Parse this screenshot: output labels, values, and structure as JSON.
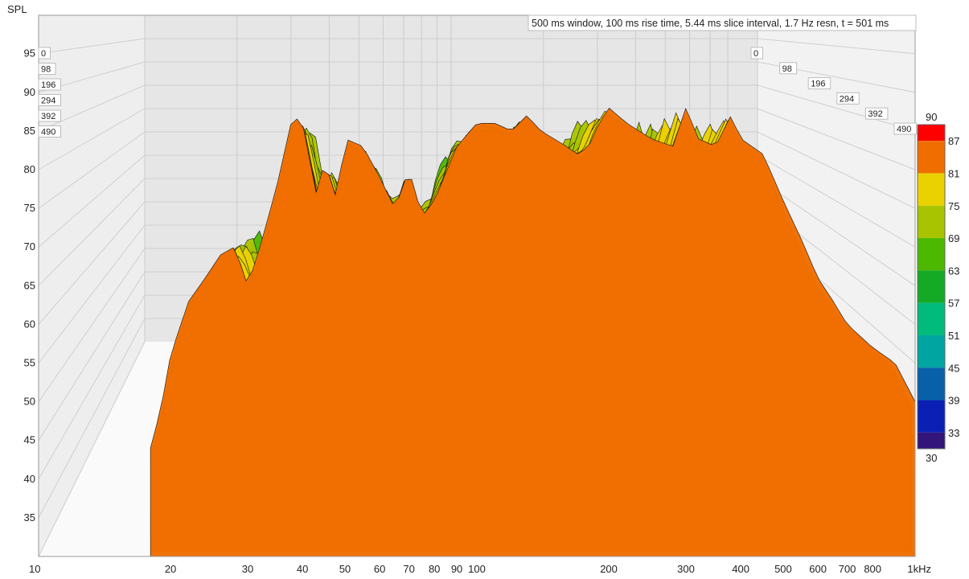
{
  "chart_data": {
    "type": "waterfall",
    "title": "500 ms window, 100 ms rise time, 5.44 ms slice interval, 1.7 Hz resn, t = 501 ms",
    "ylabel": "SPL",
    "xunit": "Hz",
    "ylim": [
      30,
      100
    ],
    "xlim": [
      10,
      1000
    ],
    "x_scale": "log",
    "y_ticks": [
      35,
      40,
      45,
      50,
      55,
      60,
      65,
      70,
      75,
      80,
      85,
      90,
      95
    ],
    "x_ticks": [
      {
        "value": 10,
        "label": "10"
      },
      {
        "value": 20,
        "label": "20"
      },
      {
        "value": 30,
        "label": "30"
      },
      {
        "value": 40,
        "label": "40"
      },
      {
        "value": 50,
        "label": "50"
      },
      {
        "value": 60,
        "label": "60"
      },
      {
        "value": 70,
        "label": "70"
      },
      {
        "value": 80,
        "label": "80"
      },
      {
        "value": 90,
        "label": "90"
      },
      {
        "value": 100,
        "label": "100"
      },
      {
        "value": 200,
        "label": "200"
      },
      {
        "value": 300,
        "label": "300"
      },
      {
        "value": 400,
        "label": "400"
      },
      {
        "value": 500,
        "label": "500"
      },
      {
        "value": 600,
        "label": "600"
      },
      {
        "value": 700,
        "label": "700"
      },
      {
        "value": 800,
        "label": "800"
      },
      {
        "value": 1000,
        "label": "1kHz"
      }
    ],
    "time_slices_ms": [
      "0",
      "98",
      "196",
      "294",
      "392",
      "490"
    ],
    "colorbar": {
      "min": 30,
      "max": 90,
      "labels": [
        {
          "value": 90,
          "label": "90"
        },
        {
          "value": 87,
          "label": "87"
        },
        {
          "value": 81,
          "label": "81"
        },
        {
          "value": 75,
          "label": "75"
        },
        {
          "value": 69,
          "label": "69"
        },
        {
          "value": 63,
          "label": "63"
        },
        {
          "value": 57,
          "label": "57"
        },
        {
          "value": 51,
          "label": "51"
        },
        {
          "value": 45,
          "label": "45"
        },
        {
          "value": 39,
          "label": "39"
        },
        {
          "value": 33,
          "label": "33"
        },
        {
          "value": 30,
          "label": "30"
        }
      ],
      "bands": [
        {
          "from": 87,
          "to": 90,
          "color": "#ff0000"
        },
        {
          "from": 81,
          "to": 87,
          "color": "#f06e00"
        },
        {
          "from": 75,
          "to": 81,
          "color": "#e9d200"
        },
        {
          "from": 69,
          "to": 75,
          "color": "#a8c400"
        },
        {
          "from": 63,
          "to": 69,
          "color": "#4cb800"
        },
        {
          "from": 57,
          "to": 63,
          "color": "#14aa26"
        },
        {
          "from": 51,
          "to": 57,
          "color": "#00bb7c"
        },
        {
          "from": 45,
          "to": 51,
          "color": "#00a4a0"
        },
        {
          "from": 39,
          "to": 45,
          "color": "#0860a8"
        },
        {
          "from": 33,
          "to": 39,
          "color": "#0a20b4"
        },
        {
          "from": 30,
          "to": 33,
          "color": "#32147a"
        }
      ]
    },
    "front_slice": {
      "time_ms": 0,
      "points": [
        [
          18,
          44
        ],
        [
          19,
          49
        ],
        [
          20,
          56
        ],
        [
          22,
          63
        ],
        [
          24,
          66
        ],
        [
          26,
          69
        ],
        [
          28,
          70
        ],
        [
          30,
          65
        ],
        [
          32,
          70
        ],
        [
          35,
          78
        ],
        [
          38,
          87
        ],
        [
          40,
          86
        ],
        [
          43,
          77
        ],
        [
          45,
          81
        ],
        [
          48,
          76
        ],
        [
          50,
          84
        ],
        [
          55,
          83
        ],
        [
          60,
          79
        ],
        [
          65,
          75
        ],
        [
          70,
          80
        ],
        [
          75,
          74
        ],
        [
          80,
          76
        ],
        [
          90,
          83
        ],
        [
          100,
          86
        ],
        [
          110,
          86
        ],
        [
          120,
          85
        ],
        [
          130,
          87
        ],
        [
          140,
          85
        ],
        [
          150,
          84
        ],
        [
          160,
          83
        ],
        [
          170,
          82
        ],
        [
          180,
          83
        ],
        [
          190,
          86
        ],
        [
          200,
          88
        ],
        [
          220,
          86
        ],
        [
          250,
          84
        ],
        [
          280,
          83
        ],
        [
          300,
          88
        ],
        [
          320,
          84
        ],
        [
          350,
          83
        ],
        [
          380,
          87
        ],
        [
          400,
          84
        ],
        [
          450,
          82
        ],
        [
          500,
          76
        ],
        [
          550,
          71
        ],
        [
          600,
          66
        ],
        [
          650,
          63
        ],
        [
          700,
          60
        ],
        [
          800,
          57
        ],
        [
          900,
          55
        ],
        [
          1000,
          50
        ]
      ]
    }
  }
}
